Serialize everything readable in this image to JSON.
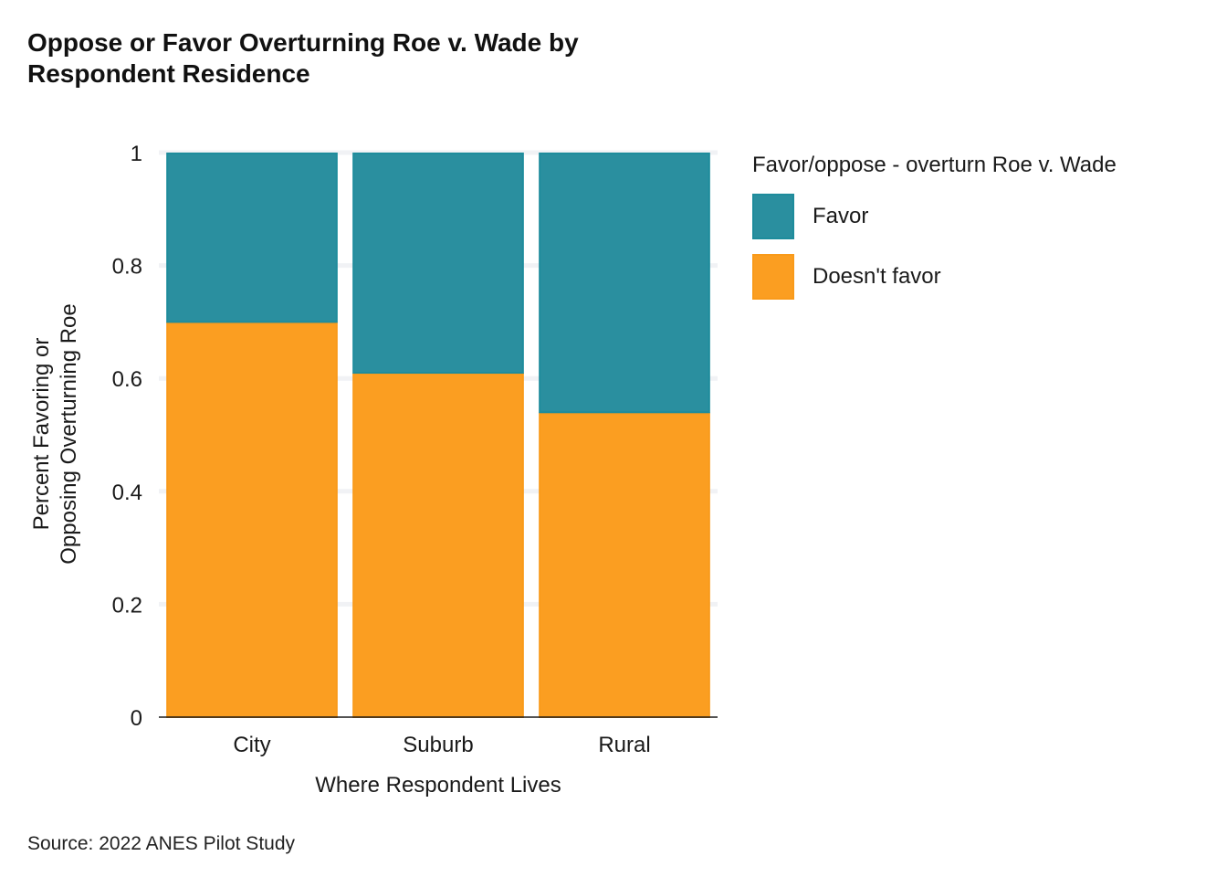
{
  "chart_data": {
    "type": "bar",
    "stacked": true,
    "title": "Oppose or Favor Overturning Roe v. Wade by Respondent Residence",
    "title_lines": [
      "Oppose or Favor Overturning Roe v. Wade by",
      "Respondent Residence"
    ],
    "xlabel": "Where Respondent Lives",
    "ylabel_lines": [
      "Percent Favoring or",
      "Opposing Overturning Roe"
    ],
    "categories": [
      "City",
      "Suburb",
      "Rural"
    ],
    "series": [
      {
        "name": "Doesn't favor",
        "values": [
          0.7,
          0.61,
          0.54
        ],
        "color": "#FB9E21",
        "edge": "#F99A1A"
      },
      {
        "name": "Favor",
        "values": [
          0.3,
          0.39,
          0.46
        ],
        "color": "#2A8F9F",
        "edge": "#1E8C9C"
      }
    ],
    "ylim": [
      0,
      1
    ],
    "yticks": [
      0,
      0.2,
      0.4,
      0.6,
      0.8,
      1
    ],
    "ytick_labels": [
      "0",
      "0.2",
      "0.4",
      "0.6",
      "0.8",
      "1"
    ],
    "grid": true,
    "legend": {
      "title": "Favor/oppose - overturn Roe v. Wade",
      "placement": "right",
      "items": [
        {
          "label": "Favor",
          "color": "#2A8F9F",
          "edge": "#1E8C9C"
        },
        {
          "label": "Doesn't favor",
          "color": "#FB9E21",
          "edge": "#F99A1A"
        }
      ]
    },
    "caption": "Source: 2022 ANES Pilot Study"
  }
}
